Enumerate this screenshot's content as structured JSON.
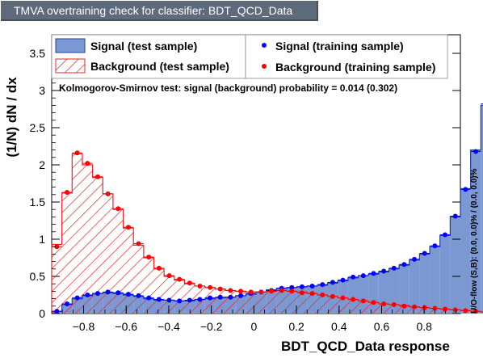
{
  "title": "TMVA overtraining check for classifier: BDT_QCD_Data",
  "ks_text": "Kolmogorov-Smirnov test: signal (background) probability = 0.014 (0.302)",
  "side_text": "U/O-flow (S,B): (0.0, 0.0)% / (0.0, 0.0)%",
  "legend": {
    "sig_test": "Signal (test sample)",
    "bkg_test": "Background (test sample)",
    "sig_train": "Signal (training sample)",
    "bkg_train": "Background (training sample)"
  },
  "colors": {
    "signal_fill": "#7b98d2",
    "signal_line": "#1f3f9f",
    "background_hatch": "#e8232a",
    "signal_marker": "#0000ff",
    "background_marker": "#ff0000"
  },
  "chart_data": {
    "type": "histogram",
    "title": "TMVA overtraining check for classifier: BDT_QCD_Data",
    "xlabel": "BDT_QCD_Data response",
    "ylabel": "(1/N) dN / dx",
    "xlim": [
      -0.95,
      0.97
    ],
    "ylim": [
      0,
      3.75
    ],
    "xticks": [
      -0.8,
      -0.6,
      -0.4,
      -0.2,
      0,
      0.2,
      0.4,
      0.6,
      0.8
    ],
    "xtick_labels": [
      "−0.8",
      "−0.6",
      "−0.4",
      "−0.2",
      "0",
      "0.2",
      "0.4",
      "0.6",
      "0.8"
    ],
    "yticks": [
      0,
      0.5,
      1,
      1.5,
      2,
      2.5,
      3,
      3.5
    ],
    "ytick_labels": [
      "0",
      "0.5",
      "1",
      "1.5",
      "2",
      "2.5",
      "3",
      "3.5"
    ],
    "bin_low": -0.95,
    "bin_width": 0.048,
    "series": [
      {
        "name": "Signal (test sample)",
        "values": [
          0.03,
          0.12,
          0.2,
          0.24,
          0.27,
          0.28,
          0.27,
          0.25,
          0.23,
          0.2,
          0.18,
          0.18,
          0.17,
          0.17,
          0.19,
          0.2,
          0.21,
          0.22,
          0.24,
          0.26,
          0.29,
          0.32,
          0.34,
          0.35,
          0.36,
          0.37,
          0.38,
          0.41,
          0.44,
          0.48,
          0.51,
          0.53,
          0.56,
          0.6,
          0.65,
          0.72,
          0.8,
          0.9,
          1.05,
          1.3,
          1.68,
          2.2,
          2.8
        ]
      },
      {
        "name": "Background (test sample)",
        "values": [
          0.93,
          1.62,
          2.15,
          2.0,
          1.83,
          1.61,
          1.4,
          1.15,
          0.92,
          0.75,
          0.6,
          0.5,
          0.45,
          0.4,
          0.37,
          0.35,
          0.33,
          0.31,
          0.3,
          0.29,
          0.29,
          0.3,
          0.31,
          0.3,
          0.29,
          0.27,
          0.25,
          0.23,
          0.21,
          0.19,
          0.17,
          0.15,
          0.13,
          0.12,
          0.11,
          0.09,
          0.08,
          0.07,
          0.06,
          0.05,
          0.04,
          0.03,
          0.02
        ]
      },
      {
        "name": "Signal (training sample)",
        "values": [
          0.03,
          0.13,
          0.21,
          0.25,
          0.27,
          0.29,
          0.28,
          0.26,
          0.24,
          0.21,
          0.19,
          0.18,
          0.17,
          0.18,
          0.19,
          0.21,
          0.22,
          0.22,
          0.24,
          0.27,
          0.29,
          0.31,
          0.34,
          0.35,
          0.36,
          0.37,
          0.39,
          0.42,
          0.45,
          0.49,
          0.51,
          0.54,
          0.57,
          0.61,
          0.66,
          0.73,
          0.81,
          0.91,
          1.06,
          1.31,
          1.67,
          2.18,
          2.82
        ]
      },
      {
        "name": "Background (training sample)",
        "values": [
          0.9,
          1.63,
          2.16,
          2.02,
          1.84,
          1.61,
          1.41,
          1.16,
          0.94,
          0.76,
          0.61,
          0.51,
          0.46,
          0.41,
          0.37,
          0.35,
          0.33,
          0.31,
          0.3,
          0.29,
          0.29,
          0.3,
          0.31,
          0.3,
          0.28,
          0.27,
          0.25,
          0.23,
          0.21,
          0.19,
          0.17,
          0.15,
          0.13,
          0.12,
          0.1,
          0.09,
          0.08,
          0.07,
          0.06,
          0.05,
          0.04,
          0.03,
          0.02
        ]
      }
    ],
    "legend": "top",
    "grid": false
  }
}
